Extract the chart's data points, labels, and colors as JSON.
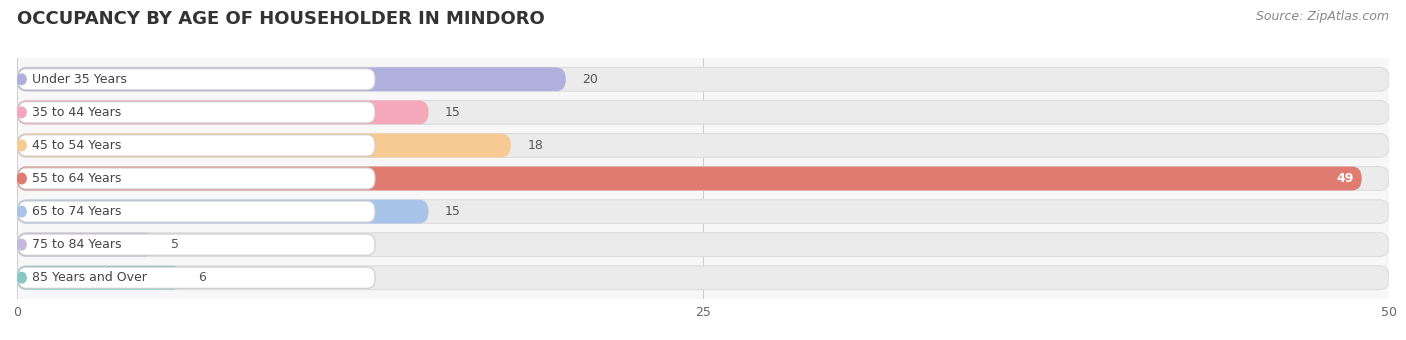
{
  "title": "OCCUPANCY BY AGE OF HOUSEHOLDER IN MINDORO",
  "source": "Source: ZipAtlas.com",
  "categories": [
    "Under 35 Years",
    "35 to 44 Years",
    "45 to 54 Years",
    "55 to 64 Years",
    "65 to 74 Years",
    "75 to 84 Years",
    "85 Years and Over"
  ],
  "values": [
    20,
    15,
    18,
    49,
    15,
    5,
    6
  ],
  "bar_colors": [
    "#b0b0de",
    "#f5a8bc",
    "#f7ca94",
    "#e07b72",
    "#a8c4e8",
    "#c8b8dc",
    "#88c8c4"
  ],
  "bar_bg_color": "#ebebeb",
  "xlim_data": [
    0,
    50
  ],
  "xticks": [
    0,
    25,
    50
  ],
  "title_fontsize": 13,
  "source_fontsize": 9,
  "label_fontsize": 9,
  "value_fontsize": 9,
  "background_color": "#ffffff",
  "plot_bg_color": "#f7f7f7",
  "white_label_bg": "#ffffff",
  "label_text_color": "#444444",
  "value_text_color_dark": "#555555",
  "value_text_color_light": "#ffffff"
}
